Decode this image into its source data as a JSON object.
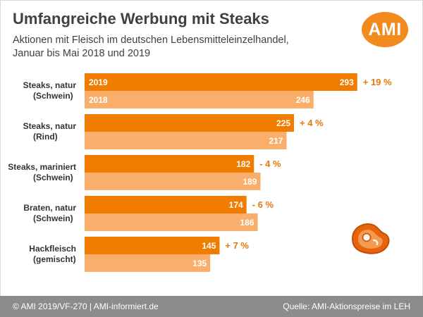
{
  "title": "Umfangreiche Werbung mit Steaks",
  "subtitle_line1": "Aktionen mit Fleisch im deutschen Lebensmitteleinzelhandel,",
  "subtitle_line2": "Januar bis Mai 2018 und 2019",
  "logo_text": "AMI",
  "footer_left": "© AMI 2019/VF-270 | AMI-informiert.de",
  "footer_right": "Quelle: AMI-Aktionspreise im LEH",
  "colors": {
    "bar_2019": "#f07c00",
    "bar_2018": "#f9ae6b",
    "change_text": "#e8770a",
    "label_text": "#333333"
  },
  "chart_data": {
    "type": "bar",
    "orientation": "horizontal",
    "categories": [
      [
        "Steaks, natur",
        "(Schwein)"
      ],
      [
        "Steaks, natur",
        "(Rind)"
      ],
      [
        "Steaks, mariniert",
        "(Schwein)"
      ],
      [
        "Braten, natur",
        "(Schwein)"
      ],
      [
        "Hackfleisch",
        "(gemischt)"
      ]
    ],
    "series": [
      {
        "name": "2019",
        "values": [
          293,
          225,
          182,
          174,
          145
        ]
      },
      {
        "name": "2018",
        "values": [
          246,
          217,
          189,
          186,
          135
        ]
      }
    ],
    "changes": [
      "+ 19 %",
      "+ 4 %",
      "- 4 %",
      "- 6 %",
      "+ 7 %"
    ],
    "xlim": [
      0,
      300
    ],
    "grid": false,
    "legend": "inside-first-bars"
  }
}
